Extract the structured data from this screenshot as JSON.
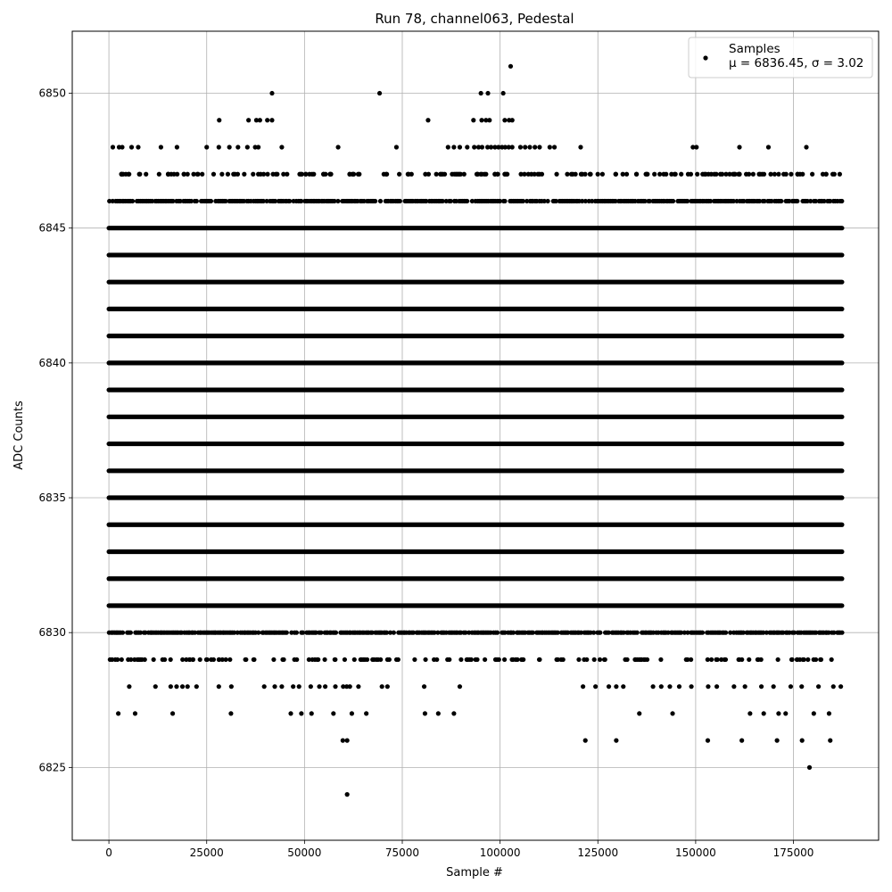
{
  "chart_data": {
    "type": "scatter",
    "title": "Run 78, channel063, Pedestal",
    "xlabel": "Sample #",
    "ylabel": "ADC Counts",
    "xlim": [
      -9370,
      196770
    ],
    "ylim": [
      6822.3,
      6852.3
    ],
    "x_ticks": [
      0,
      25000,
      50000,
      75000,
      100000,
      125000,
      150000,
      175000
    ],
    "x_tick_labels": [
      "0",
      "25000",
      "50000",
      "75000",
      "100000",
      "125000",
      "150000",
      "175000"
    ],
    "y_ticks": [
      6825,
      6830,
      6835,
      6840,
      6845,
      6850
    ],
    "y_tick_labels": [
      "6825",
      "6830",
      "6835",
      "6840",
      "6845",
      "6850"
    ],
    "grid": true,
    "legend_position": "top-right",
    "marker_color": "#000000",
    "series": [
      {
        "name": "Samples",
        "legend_stats": "μ = 6836.45, σ = 3.02",
        "x_range": [
          0,
          187400
        ],
        "dense_levels": [
          6831,
          6832,
          6833,
          6834,
          6835,
          6836,
          6837,
          6838,
          6839,
          6840,
          6841,
          6842,
          6843,
          6844,
          6845
        ],
        "semi_dense_levels": [
          6830,
          6846
        ],
        "sparse_levels": [
          {
            "y": 6829,
            "count": 150
          },
          {
            "y": 6847,
            "count": 180
          }
        ],
        "outliers": [
          {
            "x": 2400,
            "y": 6827
          },
          {
            "x": 6700,
            "y": 6827
          },
          {
            "x": 16300,
            "y": 6827
          },
          {
            "x": 31200,
            "y": 6827
          },
          {
            "x": 46500,
            "y": 6827
          },
          {
            "x": 49200,
            "y": 6827
          },
          {
            "x": 51800,
            "y": 6827
          },
          {
            "x": 57400,
            "y": 6827
          },
          {
            "x": 62100,
            "y": 6827
          },
          {
            "x": 65800,
            "y": 6827
          },
          {
            "x": 80800,
            "y": 6827
          },
          {
            "x": 84200,
            "y": 6827
          },
          {
            "x": 88200,
            "y": 6827
          },
          {
            "x": 135600,
            "y": 6827
          },
          {
            "x": 144100,
            "y": 6827
          },
          {
            "x": 163900,
            "y": 6827
          },
          {
            "x": 167400,
            "y": 6827
          },
          {
            "x": 171200,
            "y": 6827
          },
          {
            "x": 173000,
            "y": 6827
          },
          {
            "x": 180200,
            "y": 6827
          },
          {
            "x": 184100,
            "y": 6827
          },
          {
            "x": 5200,
            "y": 6828
          },
          {
            "x": 11900,
            "y": 6828
          },
          {
            "x": 15800,
            "y": 6828
          },
          {
            "x": 17300,
            "y": 6828
          },
          {
            "x": 18800,
            "y": 6828
          },
          {
            "x": 20100,
            "y": 6828
          },
          {
            "x": 22400,
            "y": 6828
          },
          {
            "x": 28100,
            "y": 6828
          },
          {
            "x": 31300,
            "y": 6828
          },
          {
            "x": 39700,
            "y": 6828
          },
          {
            "x": 42400,
            "y": 6828
          },
          {
            "x": 44200,
            "y": 6828
          },
          {
            "x": 47100,
            "y": 6828
          },
          {
            "x": 48600,
            "y": 6828
          },
          {
            "x": 51600,
            "y": 6828
          },
          {
            "x": 53800,
            "y": 6828
          },
          {
            "x": 55300,
            "y": 6828
          },
          {
            "x": 57900,
            "y": 6828
          },
          {
            "x": 59900,
            "y": 6828
          },
          {
            "x": 60800,
            "y": 6828
          },
          {
            "x": 61600,
            "y": 6828
          },
          {
            "x": 63800,
            "y": 6828
          },
          {
            "x": 69800,
            "y": 6828
          },
          {
            "x": 71200,
            "y": 6828
          },
          {
            "x": 80600,
            "y": 6828
          },
          {
            "x": 89700,
            "y": 6828
          },
          {
            "x": 121200,
            "y": 6828
          },
          {
            "x": 124400,
            "y": 6828
          },
          {
            "x": 127800,
            "y": 6828
          },
          {
            "x": 129700,
            "y": 6828
          },
          {
            "x": 131500,
            "y": 6828
          },
          {
            "x": 139100,
            "y": 6828
          },
          {
            "x": 141200,
            "y": 6828
          },
          {
            "x": 143400,
            "y": 6828
          },
          {
            "x": 145800,
            "y": 6828
          },
          {
            "x": 148900,
            "y": 6828
          },
          {
            "x": 153200,
            "y": 6828
          },
          {
            "x": 155400,
            "y": 6828
          },
          {
            "x": 159800,
            "y": 6828
          },
          {
            "x": 162600,
            "y": 6828
          },
          {
            "x": 166800,
            "y": 6828
          },
          {
            "x": 169900,
            "y": 6828
          },
          {
            "x": 174300,
            "y": 6828
          },
          {
            "x": 177100,
            "y": 6828
          },
          {
            "x": 181400,
            "y": 6828
          },
          {
            "x": 185200,
            "y": 6828
          },
          {
            "x": 187100,
            "y": 6828
          },
          {
            "x": 59800,
            "y": 6826
          },
          {
            "x": 60900,
            "y": 6826
          },
          {
            "x": 121800,
            "y": 6826
          },
          {
            "x": 129700,
            "y": 6826
          },
          {
            "x": 153100,
            "y": 6826
          },
          {
            "x": 161800,
            "y": 6826
          },
          {
            "x": 170800,
            "y": 6826
          },
          {
            "x": 177200,
            "y": 6826
          },
          {
            "x": 184400,
            "y": 6826
          },
          {
            "x": 179100,
            "y": 6825
          },
          {
            "x": 60900,
            "y": 6824
          },
          {
            "x": 1000,
            "y": 6848
          },
          {
            "x": 2600,
            "y": 6848
          },
          {
            "x": 3400,
            "y": 6848
          },
          {
            "x": 5800,
            "y": 6848
          },
          {
            "x": 7500,
            "y": 6848
          },
          {
            "x": 13300,
            "y": 6848
          },
          {
            "x": 17400,
            "y": 6848
          },
          {
            "x": 25000,
            "y": 6848
          },
          {
            "x": 28100,
            "y": 6848
          },
          {
            "x": 30800,
            "y": 6848
          },
          {
            "x": 33000,
            "y": 6848
          },
          {
            "x": 35400,
            "y": 6848
          },
          {
            "x": 37400,
            "y": 6848
          },
          {
            "x": 38200,
            "y": 6848
          },
          {
            "x": 44200,
            "y": 6848
          },
          {
            "x": 58600,
            "y": 6848
          },
          {
            "x": 73500,
            "y": 6848
          },
          {
            "x": 86700,
            "y": 6848
          },
          {
            "x": 88200,
            "y": 6848
          },
          {
            "x": 89700,
            "y": 6848
          },
          {
            "x": 91600,
            "y": 6848
          },
          {
            "x": 93400,
            "y": 6848
          },
          {
            "x": 94500,
            "y": 6848
          },
          {
            "x": 95400,
            "y": 6848
          },
          {
            "x": 96800,
            "y": 6848
          },
          {
            "x": 97700,
            "y": 6848
          },
          {
            "x": 98700,
            "y": 6848
          },
          {
            "x": 99600,
            "y": 6848
          },
          {
            "x": 100500,
            "y": 6848
          },
          {
            "x": 101300,
            "y": 6848
          },
          {
            "x": 102200,
            "y": 6848
          },
          {
            "x": 103100,
            "y": 6848
          },
          {
            "x": 105200,
            "y": 6848
          },
          {
            "x": 106400,
            "y": 6848
          },
          {
            "x": 107600,
            "y": 6848
          },
          {
            "x": 108900,
            "y": 6848
          },
          {
            "x": 110100,
            "y": 6848
          },
          {
            "x": 112700,
            "y": 6848
          },
          {
            "x": 113900,
            "y": 6848
          },
          {
            "x": 120600,
            "y": 6848
          },
          {
            "x": 149300,
            "y": 6848
          },
          {
            "x": 150200,
            "y": 6848
          },
          {
            "x": 161200,
            "y": 6848
          },
          {
            "x": 168600,
            "y": 6848
          },
          {
            "x": 178300,
            "y": 6848
          },
          {
            "x": 28200,
            "y": 6849
          },
          {
            "x": 35700,
            "y": 6849
          },
          {
            "x": 37700,
            "y": 6849
          },
          {
            "x": 38600,
            "y": 6849
          },
          {
            "x": 40500,
            "y": 6849
          },
          {
            "x": 41700,
            "y": 6849
          },
          {
            "x": 81600,
            "y": 6849
          },
          {
            "x": 93200,
            "y": 6849
          },
          {
            "x": 95300,
            "y": 6849
          },
          {
            "x": 96400,
            "y": 6849
          },
          {
            "x": 97300,
            "y": 6849
          },
          {
            "x": 101200,
            "y": 6849
          },
          {
            "x": 102300,
            "y": 6849
          },
          {
            "x": 103100,
            "y": 6849
          },
          {
            "x": 41700,
            "y": 6850
          },
          {
            "x": 69200,
            "y": 6850
          },
          {
            "x": 95100,
            "y": 6850
          },
          {
            "x": 96900,
            "y": 6850
          },
          {
            "x": 100800,
            "y": 6850
          },
          {
            "x": 102700,
            "y": 6851
          }
        ]
      }
    ]
  }
}
